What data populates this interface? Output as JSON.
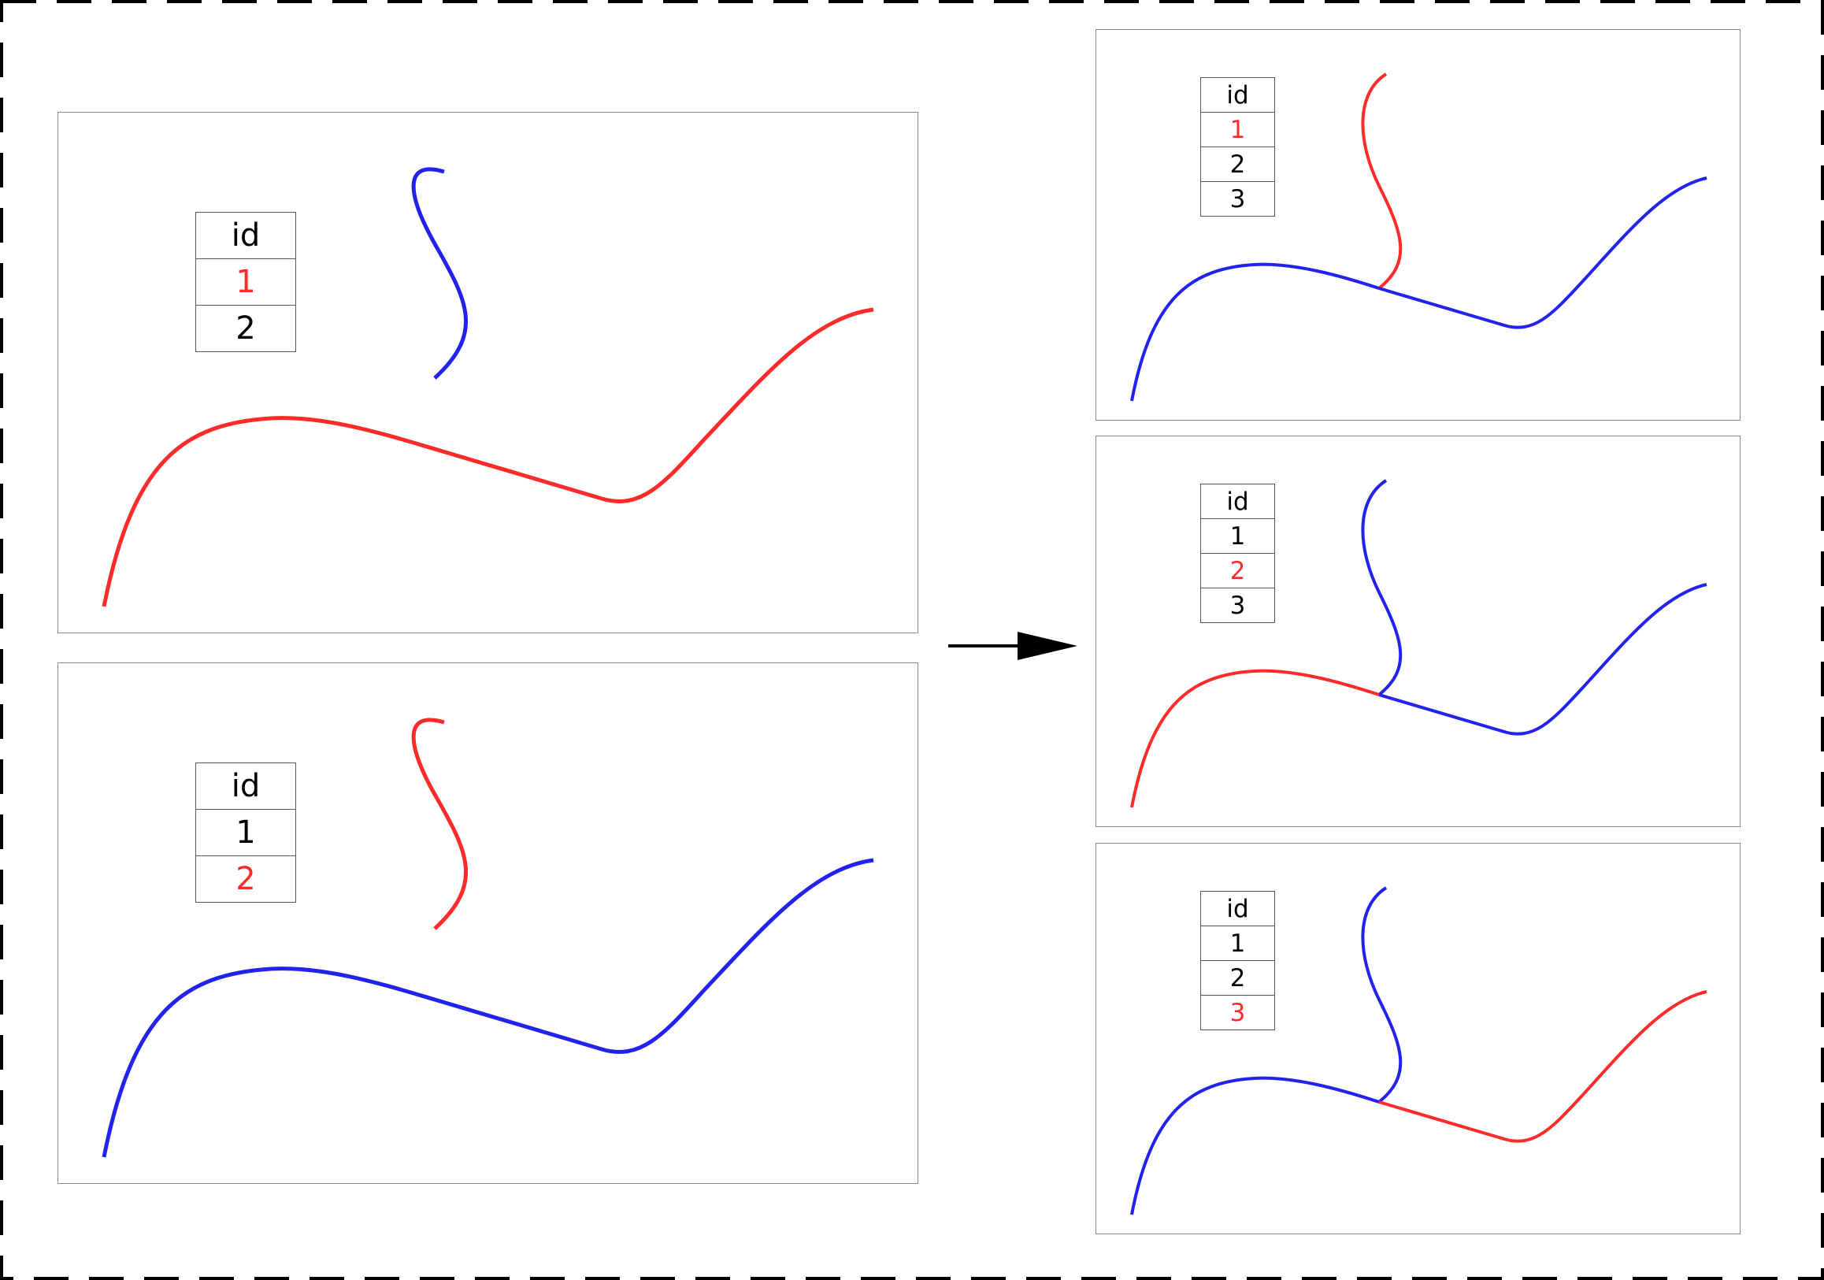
{
  "colors": {
    "selected": "#ff2a2a",
    "other": "#2222ee",
    "frame": "#000000"
  },
  "left_panels": [
    {
      "header": "id",
      "ids": [
        "1",
        "2"
      ],
      "selected": "1"
    },
    {
      "header": "id",
      "ids": [
        "1",
        "2"
      ],
      "selected": "2"
    }
  ],
  "right_panels": [
    {
      "header": "id",
      "ids": [
        "1",
        "2",
        "3"
      ],
      "selected": "1"
    },
    {
      "header": "id",
      "ids": [
        "1",
        "2",
        "3"
      ],
      "selected": "2"
    },
    {
      "header": "id",
      "ids": [
        "1",
        "2",
        "3"
      ],
      "selected": "3"
    }
  ]
}
